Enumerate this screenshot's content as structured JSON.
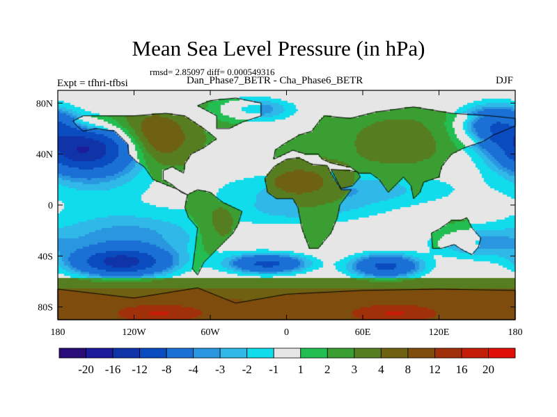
{
  "chart_data": {
    "type": "heatmap",
    "title": "Mean Sea Level Pressure (in hPa)",
    "stats_line": "rmsd= 2.85097 diff= 0.000549316",
    "left_label": "Expt = tfhri-tfbsi",
    "center_label": "Dan_Phase7_BETR - Cha_Phase6_BETR",
    "right_label": "DJF",
    "xlim": [
      -180,
      180
    ],
    "ylim": [
      -90,
      90
    ],
    "x_ticks": [
      {
        "value": -180,
        "label": "180"
      },
      {
        "value": -120,
        "label": "120W"
      },
      {
        "value": -60,
        "label": "60W"
      },
      {
        "value": 0,
        "label": "0"
      },
      {
        "value": 60,
        "label": "60E"
      },
      {
        "value": 120,
        "label": "120E"
      },
      {
        "value": 180,
        "label": "180"
      }
    ],
    "y_ticks": [
      {
        "value": 80,
        "label": "80N"
      },
      {
        "value": 40,
        "label": "40N"
      },
      {
        "value": 0,
        "label": "0"
      },
      {
        "value": -40,
        "label": "40S"
      },
      {
        "value": -80,
        "label": "80S"
      }
    ],
    "colorbar": {
      "levels": [
        -20,
        -16,
        -12,
        -8,
        -4,
        -3,
        -2,
        -1,
        1,
        2,
        3,
        4,
        8,
        12,
        16,
        20
      ],
      "labels": [
        "-20",
        "-16",
        "-12",
        "-8",
        "-4",
        "-3",
        "-2",
        "-1",
        "1",
        "2",
        "3",
        "4",
        "8",
        "12",
        "16",
        "20"
      ],
      "colors": [
        "#2a0c78",
        "#1c1c9a",
        "#1034a8",
        "#0a4cc0",
        "#1a70d4",
        "#2a96e0",
        "#30b8e8",
        "#10dcec",
        "#e6e6e6",
        "#22be52",
        "#3a9e32",
        "#567e20",
        "#6e6212",
        "#7e4c0c",
        "#a0300a",
        "#c41e08",
        "#e01008"
      ]
    },
    "features": [
      {
        "name": "North Pacific low",
        "lon": -160,
        "lat": 45,
        "value": -12
      },
      {
        "name": "South Pacific low",
        "lon": -130,
        "lat": -45,
        "value": -12
      },
      {
        "name": "South Atlantic low",
        "lon": -15,
        "lat": -46,
        "value": -8
      },
      {
        "name": "South Indian low",
        "lon": 78,
        "lat": -48,
        "value": -8
      },
      {
        "name": "NE Pacific low",
        "lon": 160,
        "lat": 62,
        "value": -8
      },
      {
        "name": "Antarctic high",
        "lon": 0,
        "lat": -80,
        "value": 8
      }
    ]
  }
}
